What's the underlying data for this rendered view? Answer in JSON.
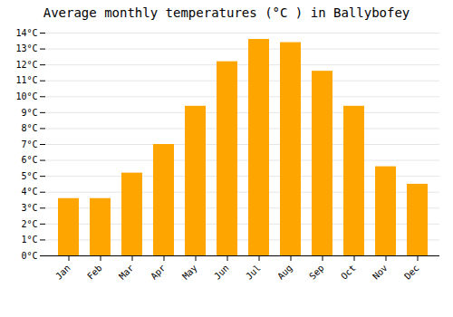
{
  "chart_data": {
    "type": "bar",
    "title": "Average monthly temperatures (°C ) in Ballybofey",
    "categories": [
      "Jan",
      "Feb",
      "Mar",
      "Apr",
      "May",
      "Jun",
      "Jul",
      "Aug",
      "Sep",
      "Oct",
      "Nov",
      "Dec"
    ],
    "values": [
      3.6,
      3.6,
      5.2,
      7.0,
      9.4,
      12.2,
      13.6,
      13.4,
      11.6,
      9.4,
      5.6,
      4.5
    ],
    "color": "#FFA500",
    "ylim": [
      0,
      14
    ],
    "yticks": [
      {
        "value": 0,
        "label": "0°C"
      },
      {
        "value": 1,
        "label": "1°C"
      },
      {
        "value": 2,
        "label": "2°C"
      },
      {
        "value": 3,
        "label": "3°C"
      },
      {
        "value": 4,
        "label": "4°C"
      },
      {
        "value": 5,
        "label": "5°C"
      },
      {
        "value": 6,
        "label": "6°C"
      },
      {
        "value": 7,
        "label": "7°C"
      },
      {
        "value": 8,
        "label": "8°C"
      },
      {
        "value": 9,
        "label": "9°C"
      },
      {
        "value": 10,
        "label": "10°C"
      },
      {
        "value": 11,
        "label": "11°C"
      },
      {
        "value": 12,
        "label": "12°C"
      },
      {
        "value": 13,
        "label": "13°C"
      },
      {
        "value": 14,
        "label": "14°C"
      }
    ],
    "grid": true
  }
}
